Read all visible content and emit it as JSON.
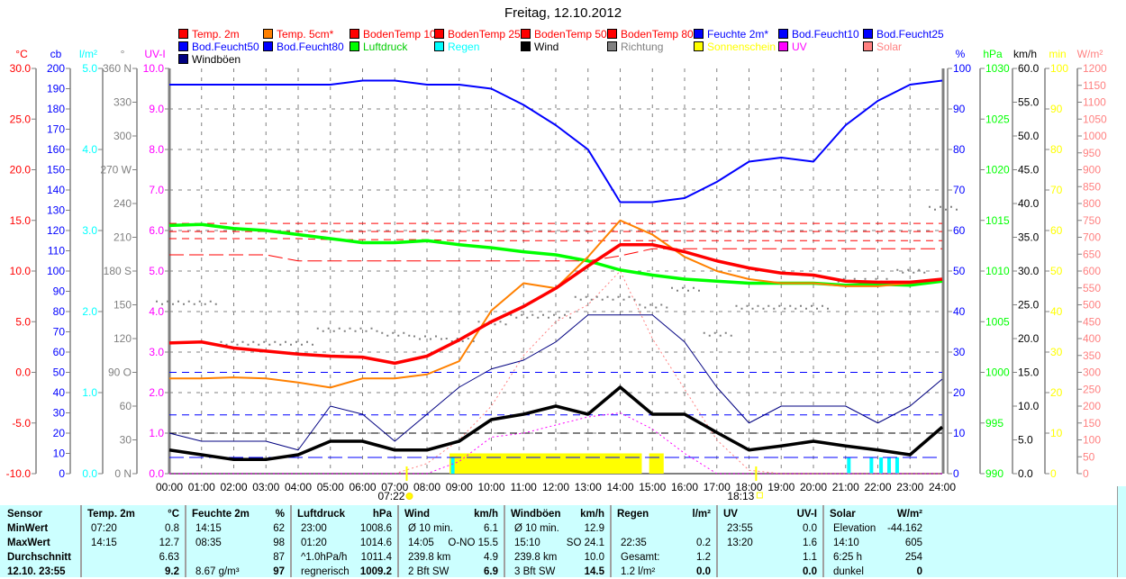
{
  "title": "Freitag, 12.10.2012",
  "legend": [
    {
      "label": "Temp. 2m",
      "color": "#ff0000",
      "text_color": "#ff0000"
    },
    {
      "label": "Temp. 5cm*",
      "color": "#ff8000",
      "text_color": "#ff0000"
    },
    {
      "label": "BodenTemp 10",
      "color": "#ff0000",
      "text_color": "#ff0000"
    },
    {
      "label": "BodenTemp 25",
      "color": "#ff0000",
      "text_color": "#ff0000"
    },
    {
      "label": "BodenTemp 50",
      "color": "#ff0000",
      "text_color": "#ff0000"
    },
    {
      "label": "BodenTemp 80",
      "color": "#ff0000",
      "text_color": "#ff0000"
    },
    {
      "label": "Feuchte 2m*",
      "color": "#0000ff",
      "text_color": "#0000ff"
    },
    {
      "label": "Bod.Feucht10",
      "color": "#0000ff",
      "text_color": "#0000ff"
    },
    {
      "label": "Bod.Feucht25",
      "color": "#0000ff",
      "text_color": "#0000ff"
    },
    {
      "label": "Bod.Feucht50",
      "color": "#0000ff",
      "text_color": "#0000ff"
    },
    {
      "label": "Bod.Feucht80",
      "color": "#0000ff",
      "text_color": "#0000ff"
    },
    {
      "label": "Luftdruck",
      "color": "#00ff00",
      "text_color": "#00cc00"
    },
    {
      "label": "Regen",
      "color": "#00ffff",
      "text_color": "#00ffff"
    },
    {
      "label": "Wind",
      "color": "#000000",
      "text_color": "#000000"
    },
    {
      "label": "Richtung",
      "color": "#808080",
      "text_color": "#808080"
    },
    {
      "label": "Sonnenschein",
      "color": "#ffff00",
      "text_color": "#ffff00"
    },
    {
      "label": "UV",
      "color": "#ff00ff",
      "text_color": "#ff00ff"
    },
    {
      "label": "Solar",
      "color": "#ff8080",
      "text_color": "#ff8080"
    },
    {
      "label": "Windböen",
      "color": "#000080",
      "text_color": "#000000"
    }
  ],
  "chart_data": {
    "type": "line",
    "title": "Freitag, 12.10.2012",
    "x_hours": [
      0,
      1,
      2,
      3,
      4,
      5,
      6,
      7,
      8,
      9,
      10,
      11,
      12,
      13,
      14,
      15,
      16,
      17,
      18,
      19,
      20,
      21,
      22,
      23,
      24
    ],
    "x_tick_labels": [
      "00:00",
      "01:00",
      "02:00",
      "03:00",
      "04:00",
      "05:00",
      "06:00",
      "07:00",
      "08:00",
      "09:00",
      "10:00",
      "11:00",
      "12:00",
      "13:00",
      "14:00",
      "15:00",
      "16:00",
      "17:00",
      "18:00",
      "19:00",
      "20:00",
      "21:00",
      "22:00",
      "23:00",
      "24:00"
    ],
    "sunrise": {
      "label": "07:22",
      "hour": 7.37
    },
    "sunset": {
      "label": "18:13",
      "hour": 18.22
    },
    "axes": {
      "temp": {
        "unit": "°C",
        "color": "#ff0000",
        "min": -10,
        "max": 30,
        "step": 5,
        "decimals": 1
      },
      "cb": {
        "unit": "cb",
        "color": "#0000ff",
        "min": 0,
        "max": 200,
        "step": 10,
        "decimals": 0
      },
      "rain": {
        "unit": "l/m²",
        "color": "#00ffff",
        "min": 0,
        "max": 5,
        "step": 1,
        "decimals": 1
      },
      "dir": {
        "unit": "°",
        "color": "#808080",
        "min": 0,
        "max": 360,
        "step": 30,
        "labels": [
          "0  N",
          "30",
          "60",
          "90  O",
          "120",
          "150",
          "180 S",
          "210",
          "240",
          "270 W",
          "300",
          "330",
          "360 N"
        ]
      },
      "uv": {
        "unit": "UV-I",
        "color": "#ff00ff",
        "min": 0,
        "max": 10,
        "step": 1,
        "decimals": 1
      },
      "pct": {
        "unit": "%",
        "color": "#0000ff",
        "min": 0,
        "max": 100,
        "step": 10,
        "decimals": 0
      },
      "hpa": {
        "unit": "hPa",
        "color": "#00ff00",
        "min": 990,
        "max": 1030,
        "step": 5,
        "decimals": 0
      },
      "kmh": {
        "unit": "km/h",
        "color": "#000000",
        "min": 0,
        "max": 60,
        "step": 5,
        "decimals": 1
      },
      "min": {
        "unit": "min",
        "color": "#ffff00",
        "min": 0,
        "max": 100,
        "step": 10,
        "decimals": 0
      },
      "wm2": {
        "unit": "W/m²",
        "color": "#ff8080",
        "min": 0,
        "max": 1200,
        "step": 50,
        "decimals": 0
      }
    },
    "series": [
      {
        "name": "BodenTemp 80",
        "axis": "temp",
        "color": "#ff0000",
        "style": "dash",
        "values": [
          14.7,
          14.7,
          14.7,
          14.7,
          14.7,
          14.7,
          14.7,
          14.7,
          14.7,
          14.7,
          14.7,
          14.7,
          14.7,
          14.7,
          14.7,
          14.7,
          14.7,
          14.7,
          14.7,
          14.7,
          14.7,
          14.7,
          14.7,
          14.7,
          14.7
        ]
      },
      {
        "name": "BodenTemp 50",
        "axis": "temp",
        "color": "#ff0000",
        "style": "dash",
        "values": [
          13.9,
          13.9,
          13.9,
          13.9,
          13.9,
          13.9,
          13.9,
          13.9,
          13.9,
          13.9,
          13.9,
          13.9,
          13.9,
          13.9,
          13.9,
          13.9,
          13.9,
          13.9,
          13.9,
          13.9,
          13.9,
          13.9,
          13.9,
          13.9,
          13.9
        ]
      },
      {
        "name": "BodenTemp 25",
        "axis": "temp",
        "color": "#ff0000",
        "style": "dash",
        "values": [
          13.2,
          13.2,
          13.2,
          13.2,
          13.2,
          13.1,
          13.1,
          13.1,
          13.1,
          13.0,
          13.0,
          13.0,
          13.0,
          13.0,
          13.0,
          13.0,
          13.0,
          13.0,
          13.0,
          13.0,
          13.0,
          13.0,
          13.0,
          13.0,
          13.0
        ]
      },
      {
        "name": "BodenTemp 10",
        "axis": "temp",
        "color": "#ff0000",
        "style": "longdash",
        "values": [
          11.6,
          11.6,
          11.6,
          11.6,
          11.0,
          11.0,
          11.0,
          11.0,
          11.0,
          11.0,
          11.0,
          11.0,
          11.0,
          11.0,
          11.5,
          12.2,
          12.2,
          12.2,
          12.2,
          12.2,
          12.2,
          12.2,
          12.2,
          12.2,
          12.2
        ]
      },
      {
        "name": "Bod.Feucht10",
        "axis": "cb",
        "color": "#0000ff",
        "style": "dash",
        "values": [
          50,
          50,
          50,
          50,
          50,
          50,
          50,
          50,
          50,
          50,
          50,
          50,
          50,
          50,
          50,
          50,
          50,
          50,
          50,
          50,
          50,
          50,
          50,
          50,
          50
        ]
      },
      {
        "name": "Bod.Feucht25",
        "axis": "cb",
        "color": "#0000ff",
        "style": "dash",
        "values": [
          29,
          29,
          29,
          29,
          29,
          29,
          29,
          29,
          29,
          29,
          29,
          29,
          29,
          29,
          29,
          29,
          29,
          29,
          29,
          29,
          29,
          29,
          29,
          29,
          29
        ]
      },
      {
        "name": "Bod.Feucht50",
        "axis": "cb",
        "color": "#000000",
        "style": "dash",
        "values": [
          20,
          20,
          20,
          20,
          20,
          20,
          20,
          20,
          20,
          20,
          20,
          20,
          20,
          20,
          20,
          20,
          20,
          20,
          20,
          20,
          20,
          20,
          20,
          20,
          20
        ]
      },
      {
        "name": "Bod.Feucht80",
        "axis": "cb",
        "color": "#0000ff",
        "style": "longdash",
        "values": [
          8,
          8,
          8,
          8,
          8,
          8,
          8,
          8,
          8,
          8,
          8,
          8,
          8,
          8,
          8,
          8,
          8,
          8,
          8,
          8,
          8,
          8,
          8,
          8,
          8
        ]
      },
      {
        "name": "Solar",
        "axis": "wm2",
        "color": "#ff8080",
        "style": "dot",
        "values": [
          0,
          0,
          0,
          0,
          0,
          0,
          0,
          0,
          30,
          100,
          200,
          350,
          450,
          500,
          600,
          400,
          250,
          100,
          10,
          0,
          0,
          0,
          0,
          0,
          0
        ]
      },
      {
        "name": "UV",
        "axis": "uv",
        "color": "#ff00ff",
        "style": "dot",
        "values": [
          0,
          0,
          0,
          0,
          0,
          0,
          0,
          0,
          0,
          0.3,
          0.9,
          1.0,
          1.2,
          1.4,
          1.5,
          1.1,
          0.5,
          0,
          0,
          0,
          0,
          0,
          0,
          0,
          0
        ]
      },
      {
        "name": "Richtung",
        "axis": "dir",
        "color": "#808080",
        "style": "points",
        "values": [
          153,
          153,
          117,
          117,
          117,
          129,
          129,
          125,
          122,
          120,
          135,
          141,
          141,
          157,
          157,
          150,
          165,
          125,
          149,
          149,
          149,
          173,
          173,
          181,
          237
        ]
      },
      {
        "name": "Windböen",
        "axis": "kmh",
        "color": "#000080",
        "style": "thin",
        "values": [
          6,
          4.8,
          4.8,
          4.8,
          3.5,
          10,
          8.8,
          4.8,
          8.8,
          12.8,
          15.5,
          16.8,
          19.5,
          23.5,
          23.5,
          23.5,
          19.5,
          12.8,
          7.5,
          10,
          10,
          10,
          7.5,
          10,
          14
        ]
      },
      {
        "name": "Wind",
        "axis": "kmh",
        "color": "#000000",
        "style": "bold",
        "values": [
          3.5,
          2.8,
          2.1,
          2.1,
          2.8,
          4.8,
          4.8,
          3.5,
          3.5,
          4.8,
          8,
          8.8,
          10,
          8.8,
          12.8,
          8.8,
          8.8,
          6.1,
          3.5,
          4.1,
          4.8,
          4.1,
          3.5,
          2.8,
          6.9
        ]
      },
      {
        "name": "Luftdruck",
        "axis": "hpa",
        "color": "#00ff00",
        "style": "bold",
        "values": [
          1014.5,
          1014.6,
          1014.2,
          1014.0,
          1013.6,
          1013.2,
          1012.8,
          1012.8,
          1013.0,
          1012.6,
          1012.3,
          1011.9,
          1011.6,
          1011.0,
          1010.1,
          1009.6,
          1009.2,
          1009.0,
          1008.8,
          1008.8,
          1008.8,
          1008.6,
          1008.7,
          1008.6,
          1009.0
        ]
      },
      {
        "name": "Feuchte 2m*",
        "axis": "pct",
        "color": "#0000ff",
        "style": "normal",
        "values": [
          96,
          96,
          96,
          96,
          96,
          96,
          97,
          97,
          96,
          96,
          95,
          91,
          86,
          80,
          67,
          67,
          68,
          72,
          77,
          78,
          77,
          86,
          92,
          96,
          97
        ]
      },
      {
        "name": "Temp. 5cm*",
        "axis": "temp",
        "color": "#ff8000",
        "style": "normal",
        "values": [
          -0.6,
          -0.6,
          -0.5,
          -0.6,
          -1.0,
          -1.5,
          -0.6,
          -0.6,
          -0.2,
          1.1,
          6.1,
          8.8,
          8.3,
          11.4,
          15.0,
          13.6,
          11.4,
          10.0,
          9.2,
          8.8,
          8.8,
          8.5,
          8.5,
          8.8,
          9.2
        ]
      },
      {
        "name": "Temp. 2m",
        "axis": "temp",
        "color": "#ff0000",
        "style": "bold",
        "values": [
          2.9,
          3.0,
          2.4,
          2.1,
          1.8,
          1.6,
          1.5,
          0.9,
          1.6,
          3.2,
          5.0,
          6.5,
          8.3,
          10.5,
          12.6,
          12.6,
          11.9,
          11.0,
          10.3,
          9.8,
          9.6,
          9.0,
          8.9,
          8.9,
          9.2
        ]
      }
    ],
    "sunshine_min": [
      {
        "from": 8.7,
        "to": 14.67,
        "value": 5
      },
      {
        "from": 14.9,
        "to": 15.35,
        "value": 5
      }
    ],
    "rain_l_m2": [
      {
        "hour": 8.8,
        "value": 0.2
      },
      {
        "hour": 21.1,
        "value": 0.2
      },
      {
        "hour": 21.8,
        "value": 0.2
      },
      {
        "hour": 22.1,
        "value": 0.2
      },
      {
        "hour": 22.35,
        "value": 0.2
      },
      {
        "hour": 22.6,
        "value": 0.2
      }
    ]
  },
  "table": {
    "headers": [
      [
        "Sensor"
      ],
      [
        "Temp. 2m",
        "°C"
      ],
      [
        "Feuchte 2m",
        "%"
      ],
      [
        "Luftdruck",
        "hPa"
      ],
      [
        "Wind",
        "km/h"
      ],
      [
        "Windböen",
        "km/h"
      ],
      [
        "Regen",
        "l/m²"
      ],
      [
        "UV",
        "UV-I"
      ],
      [
        "Solar",
        "W/m²"
      ]
    ],
    "rows": [
      {
        "label": "MinWert",
        "cells": [
          [
            "07:20",
            "0.8"
          ],
          [
            "14:15",
            "62"
          ],
          [
            "23:00",
            "1008.6"
          ],
          [
            "Ø 10 min.",
            "6.1"
          ],
          [
            "Ø 10 min.",
            "12.9"
          ],
          [
            "",
            ""
          ],
          [
            "23:55",
            "0.0"
          ],
          [
            "Elevation",
            "-44.162"
          ]
        ]
      },
      {
        "label": "MaxWert",
        "cells": [
          [
            "14:15",
            "12.7"
          ],
          [
            "08:35",
            "98"
          ],
          [
            "01:20",
            "1014.6"
          ],
          [
            "14:05",
            "O-NO 15.5"
          ],
          [
            "15:10",
            "SO 24.1"
          ],
          [
            "22:35",
            "0.2"
          ],
          [
            "13:20",
            "1.6"
          ],
          [
            "14:10",
            "605"
          ]
        ]
      },
      {
        "label": "Durchschnitt",
        "cells": [
          [
            "",
            "6.63"
          ],
          [
            "",
            "87"
          ],
          [
            "^1.0hPa/h",
            "1011.4"
          ],
          [
            "239.8 km",
            "4.9"
          ],
          [
            "239.8 km",
            "10.0"
          ],
          [
            "Gesamt:",
            "1.2"
          ],
          [
            "",
            "1.1"
          ],
          [
            "6:25 h",
            "254"
          ]
        ]
      },
      {
        "label": "12.10. 23:55",
        "cells": [
          [
            "",
            "9.2"
          ],
          [
            "8.67 g/m³",
            "97"
          ],
          [
            "regnerisch",
            "1009.2"
          ],
          [
            "2 Bft SW",
            "6.9"
          ],
          [
            "3 Bft SW",
            "14.5"
          ],
          [
            "1.2 l/m²",
            "0.0"
          ],
          [
            "",
            "0.0"
          ],
          [
            "dunkel",
            "0"
          ]
        ]
      }
    ]
  }
}
